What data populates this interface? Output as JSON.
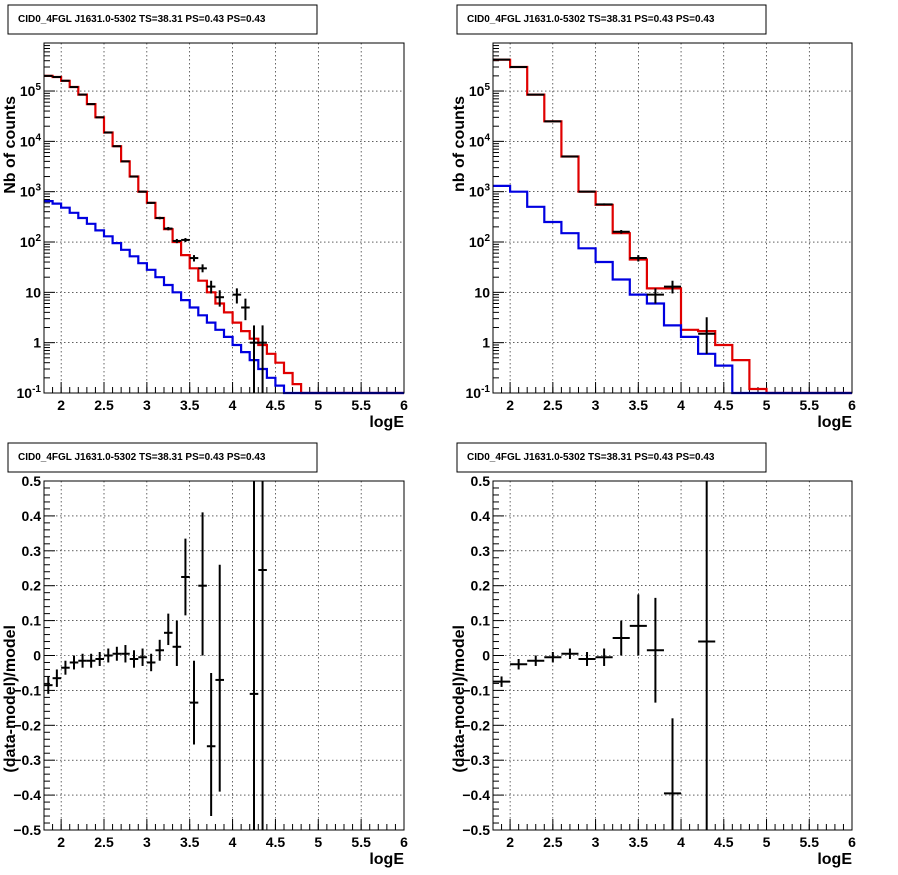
{
  "chart_data": [
    {
      "type": "step",
      "panel": "top-left",
      "title": "CID0_4FGL J1631.0-5302 TS=38.31 PS=0.43 PS=0.43",
      "xlabel": "logE",
      "ylabel": "Nb of counts",
      "xlim": [
        1.8,
        6.0
      ],
      "ylim": [
        0.1,
        900000
      ],
      "log_y": true,
      "grid": true,
      "x_ticks": [
        "2",
        "2.5",
        "3",
        "3.5",
        "4",
        "4.5",
        "5",
        "5.5",
        "6"
      ],
      "y_ticks": [
        {
          "value": 0.1,
          "mant": "10",
          "exp": "-1"
        },
        {
          "value": 1,
          "mant": "1",
          "exp": ""
        },
        {
          "value": 10,
          "mant": "10",
          "exp": ""
        },
        {
          "value": 100,
          "mant": "10",
          "exp": "2"
        },
        {
          "value": 1000,
          "mant": "10",
          "exp": "3"
        },
        {
          "value": 10000,
          "mant": "10",
          "exp": "4"
        },
        {
          "value": 100000,
          "mant": "10",
          "exp": "5"
        }
      ],
      "bin_edges": [
        1.8,
        1.9,
        2.0,
        2.1,
        2.2,
        2.3,
        2.4,
        2.5,
        2.6,
        2.7,
        2.8,
        2.9,
        3.0,
        3.1,
        3.2,
        3.3,
        3.4,
        3.5,
        3.6,
        3.7,
        3.8,
        3.9,
        4.0,
        4.1,
        4.2,
        4.3,
        4.4,
        4.5,
        4.6,
        4.7,
        4.8,
        4.9,
        5.0,
        5.1,
        5.2,
        5.3,
        5.4,
        5.5,
        5.6,
        5.7,
        5.8,
        5.9,
        6.0
      ],
      "series": [
        {
          "role": "model-total",
          "color": "#e00000",
          "values": [
            200000,
            190000,
            160000,
            120000,
            85000,
            55000,
            30000,
            15000,
            8000,
            4000,
            2000,
            1000,
            600,
            300,
            180,
            100,
            55,
            30,
            17,
            10,
            6,
            4,
            2.5,
            1.7,
            1.2,
            0.9,
            0.6,
            0.4,
            0.25,
            0.15,
            0.1,
            0.1,
            0.1,
            0.1,
            0.1,
            0.1,
            0.1,
            0.1,
            0.1,
            0.1,
            0.1,
            0.1
          ]
        },
        {
          "role": "model-component",
          "color": "#0000e0",
          "values": [
            650,
            580,
            480,
            380,
            300,
            230,
            170,
            130,
            95,
            70,
            52,
            38,
            28,
            20,
            14,
            10,
            7,
            5,
            3.5,
            2.5,
            1.8,
            1.3,
            0.9,
            0.65,
            0.45,
            0.3,
            0.2,
            0.14,
            0.1,
            0.1,
            0.1,
            0.1,
            0.1,
            0.1,
            0.1,
            0.1,
            0.1,
            0.1,
            0.1,
            0.1,
            0.1,
            0.1
          ]
        }
      ],
      "points": [
        {
          "x": 1.85,
          "y": 200000,
          "ylo": 198000,
          "yhi": 202000
        },
        {
          "x": 1.95,
          "y": 190000,
          "ylo": 188000,
          "yhi": 192000
        },
        {
          "x": 2.05,
          "y": 160000,
          "ylo": 158000,
          "yhi": 162000
        },
        {
          "x": 2.15,
          "y": 120000,
          "ylo": 118000,
          "yhi": 122000
        },
        {
          "x": 2.25,
          "y": 85000,
          "ylo": 84000,
          "yhi": 86000
        },
        {
          "x": 2.35,
          "y": 55000,
          "ylo": 54000,
          "yhi": 56000
        },
        {
          "x": 2.45,
          "y": 30000,
          "ylo": 29600,
          "yhi": 30400
        },
        {
          "x": 2.55,
          "y": 15000,
          "ylo": 14800,
          "yhi": 15200
        },
        {
          "x": 2.65,
          "y": 8000,
          "ylo": 7900,
          "yhi": 8100
        },
        {
          "x": 2.75,
          "y": 4000,
          "ylo": 3930,
          "yhi": 4070
        },
        {
          "x": 2.85,
          "y": 2000,
          "ylo": 1950,
          "yhi": 2050
        },
        {
          "x": 2.95,
          "y": 1000,
          "ylo": 970,
          "yhi": 1030
        },
        {
          "x": 3.05,
          "y": 600,
          "ylo": 575,
          "yhi": 625
        },
        {
          "x": 3.15,
          "y": 300,
          "ylo": 283,
          "yhi": 317
        },
        {
          "x": 3.25,
          "y": 185,
          "ylo": 171,
          "yhi": 199
        },
        {
          "x": 3.35,
          "y": 105,
          "ylo": 95,
          "yhi": 115
        },
        {
          "x": 3.45,
          "y": 110,
          "ylo": 100,
          "yhi": 120
        },
        {
          "x": 3.55,
          "y": 48,
          "ylo": 41,
          "yhi": 55
        },
        {
          "x": 3.65,
          "y": 30,
          "ylo": 25,
          "yhi": 36
        },
        {
          "x": 3.75,
          "y": 13,
          "ylo": 9.5,
          "yhi": 17
        },
        {
          "x": 3.85,
          "y": 8,
          "ylo": 5.2,
          "yhi": 11
        },
        {
          "x": 4.05,
          "y": 9,
          "ylo": 6,
          "yhi": 12
        },
        {
          "x": 4.15,
          "y": 5,
          "ylo": 2.8,
          "yhi": 7.5
        },
        {
          "x": 4.25,
          "y": 1,
          "ylo": 0.1,
          "yhi": 2.2
        },
        {
          "x": 4.35,
          "y": 1,
          "ylo": 0.1,
          "yhi": 2.2
        }
      ]
    },
    {
      "type": "step",
      "panel": "top-right",
      "title": "CID0_4FGL J1631.0-5302 TS=38.31 PS=0.43 PS=0.43",
      "xlabel": "logE",
      "ylabel": "nb of counts",
      "xlim": [
        1.8,
        6.0
      ],
      "ylim": [
        0.1,
        900000
      ],
      "log_y": true,
      "grid": true,
      "x_ticks": [
        "2",
        "2.5",
        "3",
        "3.5",
        "4",
        "4.5",
        "5",
        "5.5",
        "6"
      ],
      "y_ticks": [
        {
          "value": 0.1,
          "mant": "10",
          "exp": "-1"
        },
        {
          "value": 1,
          "mant": "1",
          "exp": ""
        },
        {
          "value": 10,
          "mant": "10",
          "exp": ""
        },
        {
          "value": 100,
          "mant": "10",
          "exp": "2"
        },
        {
          "value": 1000,
          "mant": "10",
          "exp": "3"
        },
        {
          "value": 10000,
          "mant": "10",
          "exp": "4"
        },
        {
          "value": 100000,
          "mant": "10",
          "exp": "5"
        }
      ],
      "bin_edges": [
        1.8,
        2.0,
        2.2,
        2.4,
        2.6,
        2.8,
        3.0,
        3.2,
        3.4,
        3.6,
        3.8,
        4.0,
        4.2,
        4.4,
        4.6,
        4.8,
        5.0,
        5.2,
        5.4,
        5.6,
        5.8,
        6.0
      ],
      "series": [
        {
          "role": "model-total",
          "color": "#e00000",
          "values": [
            420000,
            300000,
            85000,
            25000,
            5000,
            1000,
            550,
            150,
            45,
            12,
            12,
            1.8,
            1.7,
            0.9,
            0.45,
            0.12,
            0.1,
            0.1,
            0.1,
            0.1,
            0.1
          ]
        },
        {
          "role": "model-component",
          "color": "#0000e0",
          "values": [
            1300,
            1000,
            500,
            250,
            150,
            75,
            40,
            18,
            9,
            6,
            2.2,
            1.3,
            0.6,
            0.35,
            0.1,
            0.1,
            0.1,
            0.1,
            0.1,
            0.1,
            0.1
          ]
        }
      ],
      "points": [
        {
          "x": 1.9,
          "y": 420000,
          "ylo": 418000,
          "yhi": 422000
        },
        {
          "x": 2.1,
          "y": 300000,
          "ylo": 298000,
          "yhi": 302000
        },
        {
          "x": 2.3,
          "y": 85000,
          "ylo": 84000,
          "yhi": 86000
        },
        {
          "x": 2.5,
          "y": 25000,
          "ylo": 24700,
          "yhi": 25300
        },
        {
          "x": 2.7,
          "y": 5000,
          "ylo": 4930,
          "yhi": 5070
        },
        {
          "x": 2.9,
          "y": 1000,
          "ylo": 970,
          "yhi": 1030
        },
        {
          "x": 3.1,
          "y": 560,
          "ylo": 535,
          "yhi": 585
        },
        {
          "x": 3.3,
          "y": 160,
          "ylo": 147,
          "yhi": 173
        },
        {
          "x": 3.5,
          "y": 48,
          "ylo": 41,
          "yhi": 55
        },
        {
          "x": 3.7,
          "y": 9,
          "ylo": 6,
          "yhi": 12
        },
        {
          "x": 3.9,
          "y": 13,
          "ylo": 9.5,
          "yhi": 17
        },
        {
          "x": 4.3,
          "y": 1.5,
          "ylo": 0.6,
          "yhi": 3.2
        }
      ]
    },
    {
      "type": "errorbar",
      "panel": "bottom-left",
      "title": "CID0_4FGL J1631.0-5302 TS=38.31 PS=0.43 PS=0.43",
      "xlabel": "logE",
      "ylabel": "(data-model)/model",
      "xlim": [
        1.8,
        6.0
      ],
      "ylim": [
        -0.5,
        0.5
      ],
      "log_y": false,
      "grid": true,
      "x_ticks": [
        "2",
        "2.5",
        "3",
        "3.5",
        "4",
        "4.5",
        "5",
        "5.5",
        "6"
      ],
      "y_ticks": [
        "−0.5",
        "−0.4",
        "−0.3",
        "−0.2",
        "−0.1",
        "0",
        "0.1",
        "0.2",
        "0.3",
        "0.4",
        "0.5"
      ],
      "bin_width": 0.1,
      "points": [
        {
          "x": 1.85,
          "y": -0.085,
          "ylo": -0.11,
          "yhi": -0.06
        },
        {
          "x": 1.95,
          "y": -0.065,
          "ylo": -0.09,
          "yhi": -0.04
        },
        {
          "x": 2.05,
          "y": -0.035,
          "ylo": -0.055,
          "yhi": -0.015
        },
        {
          "x": 2.15,
          "y": -0.02,
          "ylo": -0.04,
          "yhi": 0.0
        },
        {
          "x": 2.25,
          "y": -0.015,
          "ylo": -0.035,
          "yhi": 0.005
        },
        {
          "x": 2.35,
          "y": -0.015,
          "ylo": -0.035,
          "yhi": 0.005
        },
        {
          "x": 2.45,
          "y": -0.01,
          "ylo": -0.03,
          "yhi": 0.01
        },
        {
          "x": 2.55,
          "y": 0.0,
          "ylo": -0.02,
          "yhi": 0.02
        },
        {
          "x": 2.65,
          "y": 0.005,
          "ylo": -0.015,
          "yhi": 0.025
        },
        {
          "x": 2.75,
          "y": 0.005,
          "ylo": -0.02,
          "yhi": 0.03
        },
        {
          "x": 2.85,
          "y": -0.01,
          "ylo": -0.035,
          "yhi": 0.015
        },
        {
          "x": 2.95,
          "y": -0.005,
          "ylo": -0.03,
          "yhi": 0.02
        },
        {
          "x": 3.05,
          "y": -0.02,
          "ylo": -0.045,
          "yhi": 0.005
        },
        {
          "x": 3.15,
          "y": 0.015,
          "ylo": -0.015,
          "yhi": 0.045
        },
        {
          "x": 3.25,
          "y": 0.065,
          "ylo": 0.03,
          "yhi": 0.12
        },
        {
          "x": 3.35,
          "y": 0.025,
          "ylo": -0.03,
          "yhi": 0.1
        },
        {
          "x": 3.45,
          "y": 0.225,
          "ylo": 0.115,
          "yhi": 0.335
        },
        {
          "x": 3.55,
          "y": -0.135,
          "ylo": -0.255,
          "yhi": -0.015
        },
        {
          "x": 3.65,
          "y": 0.2,
          "ylo": 0.0,
          "yhi": 0.41
        },
        {
          "x": 3.75,
          "y": -0.26,
          "ylo": -0.46,
          "yhi": -0.05
        },
        {
          "x": 3.85,
          "y": -0.07,
          "ylo": -0.39,
          "yhi": 0.26
        },
        {
          "x": 4.25,
          "y": -0.11,
          "ylo": -0.5,
          "yhi": 0.5
        },
        {
          "x": 4.35,
          "y": 0.245,
          "ylo": -0.5,
          "yhi": 0.5
        }
      ]
    },
    {
      "type": "errorbar",
      "panel": "bottom-right",
      "title": "CID0_4FGL J1631.0-5302 TS=38.31 PS=0.43 PS=0.43",
      "xlabel": "logE",
      "ylabel": "(data-model)/model",
      "xlim": [
        1.8,
        6.0
      ],
      "ylim": [
        -0.5,
        0.5
      ],
      "log_y": false,
      "grid": true,
      "x_ticks": [
        "2",
        "2.5",
        "3",
        "3.5",
        "4",
        "4.5",
        "5",
        "5.5",
        "6"
      ],
      "y_ticks": [
        "−0.5",
        "−0.4",
        "−0.3",
        "−0.2",
        "−0.1",
        "0",
        "0.1",
        "0.2",
        "0.3",
        "0.4",
        "0.5"
      ],
      "bin_width": 0.2,
      "points": [
        {
          "x": 1.9,
          "y": -0.075,
          "ylo": -0.09,
          "yhi": -0.06
        },
        {
          "x": 2.1,
          "y": -0.025,
          "ylo": -0.04,
          "yhi": -0.01
        },
        {
          "x": 2.3,
          "y": -0.015,
          "ylo": -0.03,
          "yhi": 0.0
        },
        {
          "x": 2.5,
          "y": -0.005,
          "ylo": -0.02,
          "yhi": 0.01
        },
        {
          "x": 2.7,
          "y": 0.005,
          "ylo": -0.01,
          "yhi": 0.02
        },
        {
          "x": 2.9,
          "y": -0.01,
          "ylo": -0.03,
          "yhi": 0.01
        },
        {
          "x": 3.1,
          "y": -0.005,
          "ylo": -0.03,
          "yhi": 0.02
        },
        {
          "x": 3.3,
          "y": 0.05,
          "ylo": 0.0,
          "yhi": 0.1
        },
        {
          "x": 3.5,
          "y": 0.085,
          "ylo": 0.0,
          "yhi": 0.175
        },
        {
          "x": 3.7,
          "y": 0.015,
          "ylo": -0.135,
          "yhi": 0.165
        },
        {
          "x": 3.9,
          "y": -0.395,
          "ylo": -0.5,
          "yhi": -0.18
        },
        {
          "x": 4.3,
          "y": 0.04,
          "ylo": -0.5,
          "yhi": 0.5
        }
      ]
    }
  ]
}
